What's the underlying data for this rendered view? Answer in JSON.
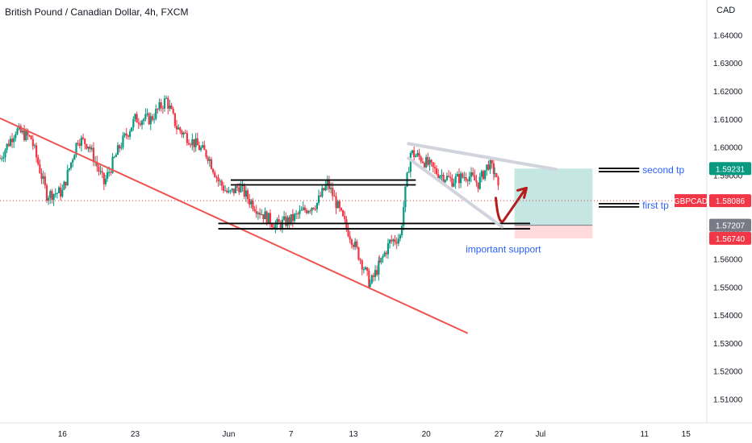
{
  "header": {
    "title": "British Pound / Canadian Dollar, 4h, FXCM",
    "currency": "CAD"
  },
  "chart_data": {
    "type": "candlestick",
    "symbol": "GBPCAD",
    "timeframe": "4h",
    "ylim": [
      1.5015,
      1.6525
    ],
    "y_ticks": [
      1.51,
      1.52,
      1.53,
      1.54,
      1.55,
      1.56,
      1.57,
      1.58,
      1.59,
      1.6,
      1.61,
      1.62,
      1.63,
      1.64
    ],
    "y_tick_labels": [
      "1.51000",
      "1.52000",
      "1.53000",
      "1.54000",
      "1.55000",
      "1.56000",
      "1.57000",
      "1.58000",
      "1.59000",
      "1.60000",
      "1.61000",
      "1.62000",
      "1.63000",
      "1.64000"
    ],
    "x_range_days": [
      10,
      78
    ],
    "x_ticks": [
      {
        "day": 16,
        "label": "16"
      },
      {
        "day": 23,
        "label": "23"
      },
      {
        "day": 32,
        "label": "Jun"
      },
      {
        "day": 38,
        "label": "7"
      },
      {
        "day": 44,
        "label": "13"
      },
      {
        "day": 51,
        "label": "20"
      },
      {
        "day": 58,
        "label": "27"
      },
      {
        "day": 62,
        "label": "Jul"
      },
      {
        "day": 72,
        "label": "11"
      },
      {
        "day": 76,
        "label": "15"
      }
    ],
    "price_path": [
      [
        10.0,
        1.596
      ],
      [
        11.5,
        1.606
      ],
      [
        13.0,
        1.603
      ],
      [
        14.5,
        1.583
      ],
      [
        16.0,
        1.584
      ],
      [
        17.5,
        1.603
      ],
      [
        18.5,
        1.601
      ],
      [
        20.0,
        1.587
      ],
      [
        21.5,
        1.6
      ],
      [
        23.0,
        1.61
      ],
      [
        24.5,
        1.61
      ],
      [
        26.0,
        1.617
      ],
      [
        27.0,
        1.607
      ],
      [
        28.5,
        1.602
      ],
      [
        30.0,
        1.597
      ],
      [
        31.0,
        1.588
      ],
      [
        32.0,
        1.583
      ],
      [
        33.0,
        1.586
      ],
      [
        34.0,
        1.581
      ],
      [
        35.0,
        1.577
      ],
      [
        36.5,
        1.572
      ],
      [
        38.0,
        1.574
      ],
      [
        39.5,
        1.578
      ],
      [
        40.5,
        1.58
      ],
      [
        41.5,
        1.587
      ],
      [
        42.0,
        1.583
      ],
      [
        43.0,
        1.574
      ],
      [
        44.0,
        1.566
      ],
      [
        45.0,
        1.557
      ],
      [
        45.6,
        1.551
      ],
      [
        46.5,
        1.558
      ],
      [
        47.5,
        1.566
      ],
      [
        48.5,
        1.568
      ],
      [
        49.0,
        1.584
      ],
      [
        49.5,
        1.598
      ],
      [
        50.5,
        1.596
      ],
      [
        52.0,
        1.591
      ],
      [
        53.5,
        1.588
      ],
      [
        55.0,
        1.59
      ],
      [
        56.0,
        1.587
      ],
      [
        57.0,
        1.594
      ],
      [
        57.6,
        1.591
      ],
      [
        58.1,
        1.581
      ]
    ],
    "series": [
      {
        "name": "GBPCAD",
        "last_value": 1.58086,
        "color": "#f23645"
      }
    ],
    "price_labels": [
      {
        "value": 1.59231,
        "text": "1.59231",
        "color": "#089981"
      },
      {
        "value": 1.58086,
        "text": "1.58086",
        "color": "#f23645",
        "name_tag": "GBPCAD"
      },
      {
        "value": 1.57207,
        "text": "1.57207",
        "color": "#787b86"
      },
      {
        "value": 1.5674,
        "text": "1.56740",
        "color": "#f23645"
      }
    ],
    "position": {
      "day_start": 59.5,
      "day_end": 67.0,
      "take_profit": 1.59231,
      "entry": 1.57207,
      "stop_loss": 1.5674,
      "profit_color": "#b2dfdb",
      "loss_color": "#ffcdd2"
    },
    "drawings": {
      "downtrend_line": {
        "from": [
          10.0,
          1.6103
        ],
        "to": [
          55.0,
          1.5335
        ],
        "color": "#ef5350"
      },
      "horizontal_zones": [
        {
          "day_from": 32.2,
          "day_to": 50.0,
          "upper": 1.5882,
          "lower": 1.5865
        },
        {
          "day_from": 31.0,
          "day_to": 61.0,
          "upper": 1.5727,
          "lower": 1.5708
        }
      ],
      "wedge_lines": [
        {
          "from": [
            49.3,
            1.6012
          ],
          "to": [
            63.5,
            1.592
          ]
        },
        {
          "from": [
            49.3,
            1.596
          ],
          "to": [
            58.3,
            1.5715
          ]
        }
      ],
      "target_markers": [
        {
          "day_from": 67.6,
          "day_to": 71.5,
          "value": 1.5918
        },
        {
          "day_from": 67.6,
          "day_to": 71.5,
          "value": 1.5792
        }
      ],
      "projection_arrow_color": "#b71c1c"
    },
    "annotations": [
      {
        "text": "second tp",
        "day": 71.8,
        "value": 1.5918,
        "color": "#2962ff"
      },
      {
        "text": "first tp",
        "day": 71.8,
        "value": 1.5792,
        "color": "#2962ff"
      },
      {
        "text": "important support",
        "day": 54.8,
        "value": 1.5635,
        "color": "#2962ff"
      }
    ]
  }
}
